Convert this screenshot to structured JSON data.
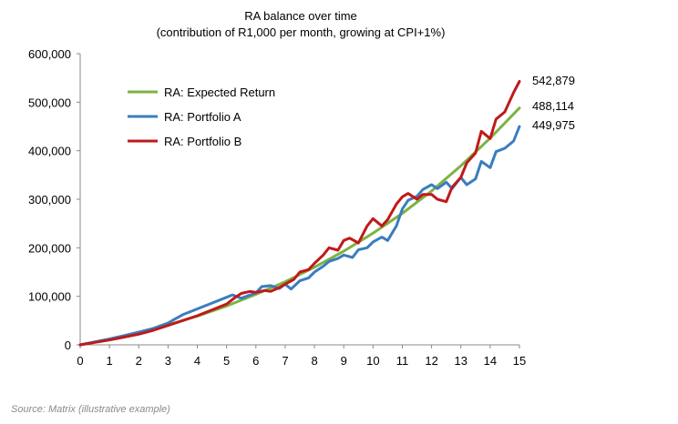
{
  "chart_data": {
    "type": "line",
    "title": "RA balance over time",
    "subtitle": "(contribution of R1,000 per month, growing at CPI+1%)",
    "xlabel": "",
    "ylabel": "",
    "xlim": [
      0,
      15
    ],
    "ylim": [
      0,
      600000
    ],
    "x_ticks": [
      "0",
      "1",
      "2",
      "3",
      "4",
      "5",
      "6",
      "7",
      "8",
      "9",
      "10",
      "11",
      "12",
      "13",
      "14",
      "15"
    ],
    "y_ticks": [
      "0",
      "100,000",
      "200,000",
      "300,000",
      "400,000",
      "500,000",
      "600,000"
    ],
    "grid": false,
    "legend_position": "top-left",
    "series": [
      {
        "name": "RA: Expected Return",
        "color": "#7cb342",
        "x": [
          0,
          1,
          2,
          3,
          4,
          5,
          6,
          7,
          8,
          9,
          10,
          11,
          12,
          13,
          14,
          15
        ],
        "values": [
          0,
          12000,
          26000,
          41000,
          59000,
          80000,
          104000,
          130000,
          160000,
          193000,
          230000,
          271000,
          317000,
          369000,
          426000,
          488114
        ],
        "end_label": "488,114"
      },
      {
        "name": "RA: Portfolio A",
        "color": "#3a7dbf",
        "x": [
          0,
          0.5,
          1,
          1.5,
          2,
          2.5,
          3,
          3.2,
          3.5,
          4,
          4.5,
          5,
          5.2,
          5.5,
          6,
          6.2,
          6.5,
          6.8,
          7,
          7.2,
          7.5,
          7.8,
          8,
          8.3,
          8.5,
          8.8,
          9,
          9.3,
          9.5,
          9.8,
          10,
          10.3,
          10.5,
          10.8,
          11,
          11.2,
          11.5,
          11.7,
          12,
          12.2,
          12.5,
          12.7,
          13,
          13.2,
          13.5,
          13.7,
          14,
          14.2,
          14.5,
          14.8,
          15
        ],
        "values": [
          0,
          6000,
          12000,
          19000,
          26000,
          34000,
          45000,
          52000,
          62000,
          74000,
          86000,
          98000,
          103000,
          96000,
          107000,
          120000,
          122000,
          116000,
          125000,
          115000,
          132000,
          138000,
          150000,
          162000,
          172000,
          178000,
          185000,
          180000,
          196000,
          200000,
          212000,
          222000,
          215000,
          245000,
          280000,
          298000,
          306000,
          320000,
          330000,
          322000,
          335000,
          322000,
          345000,
          330000,
          342000,
          378000,
          365000,
          398000,
          405000,
          420000,
          449975
        ],
        "end_label": "449,975"
      },
      {
        "name": "RA: Portfolio B",
        "color": "#c0191a",
        "x": [
          0,
          0.5,
          1,
          1.5,
          2,
          2.5,
          3,
          3.5,
          4,
          4.5,
          5,
          5.3,
          5.5,
          5.8,
          6,
          6.3,
          6.5,
          6.8,
          7,
          7.3,
          7.5,
          7.8,
          8,
          8.3,
          8.5,
          8.8,
          9,
          9.2,
          9.5,
          9.8,
          10,
          10.3,
          10.5,
          10.8,
          11,
          11.2,
          11.5,
          11.7,
          12,
          12.2,
          12.5,
          12.7,
          13,
          13.2,
          13.5,
          13.7,
          14,
          14.2,
          14.5,
          14.8,
          15
        ],
        "values": [
          0,
          5000,
          10000,
          16000,
          22000,
          30000,
          40000,
          50000,
          60000,
          72000,
          84000,
          98000,
          106000,
          110000,
          108000,
          112000,
          110000,
          118000,
          125000,
          135000,
          150000,
          155000,
          168000,
          185000,
          200000,
          195000,
          215000,
          220000,
          210000,
          245000,
          260000,
          245000,
          258000,
          290000,
          305000,
          312000,
          300000,
          310000,
          310000,
          300000,
          295000,
          325000,
          345000,
          375000,
          395000,
          440000,
          425000,
          465000,
          480000,
          520000,
          542879
        ],
        "end_label": "542,879"
      }
    ],
    "source_note": "Source: Matrix (illustrative example)"
  }
}
